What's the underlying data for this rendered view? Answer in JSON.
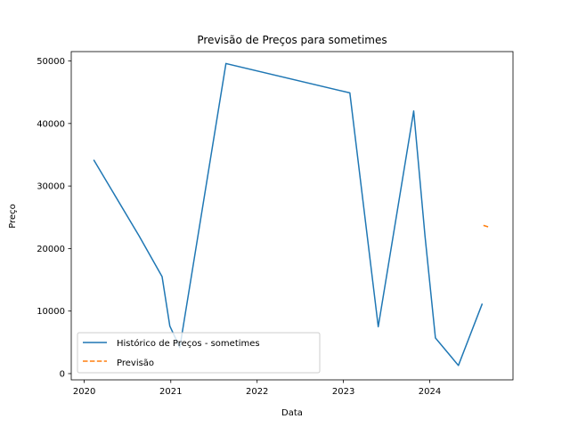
{
  "chart_data": {
    "type": "line",
    "title": "Previsão de Preços para sometimes",
    "xlabel": "Data",
    "ylabel": "Preço",
    "x_axis": {
      "kind": "date",
      "xlim": [
        "2019-11-07",
        "2024-12-18"
      ],
      "ticks": [
        {
          "value": "2020-01-01",
          "label": "2020"
        },
        {
          "value": "2021-01-01",
          "label": "2021"
        },
        {
          "value": "2022-01-01",
          "label": "2022"
        },
        {
          "value": "2023-01-01",
          "label": "2023"
        },
        {
          "value": "2024-01-01",
          "label": "2024"
        }
      ]
    },
    "y_axis": {
      "ylim": [
        -1000,
        51500
      ],
      "ticks": [
        0,
        10000,
        20000,
        30000,
        40000,
        50000
      ]
    },
    "grid": false,
    "legend_position": "lower left",
    "series": [
      {
        "name": "Histórico de Preços - sometimes",
        "color": "#1f77b4",
        "style": "solid",
        "points": [
          {
            "x": "2020-02-10",
            "y": 34200
          },
          {
            "x": "2020-08-20",
            "y": 22000
          },
          {
            "x": "2020-11-25",
            "y": 15500
          },
          {
            "x": "2020-12-28",
            "y": 7600
          },
          {
            "x": "2021-02-08",
            "y": 4200
          },
          {
            "x": "2021-08-22",
            "y": 49600
          },
          {
            "x": "2023-01-28",
            "y": 44900
          },
          {
            "x": "2023-05-28",
            "y": 7500
          },
          {
            "x": "2023-10-25",
            "y": 42000
          },
          {
            "x": "2023-12-12",
            "y": 22000
          },
          {
            "x": "2024-01-25",
            "y": 5700
          },
          {
            "x": "2024-05-01",
            "y": 1300
          },
          {
            "x": "2024-08-10",
            "y": 11200
          }
        ]
      },
      {
        "name": "Previsão",
        "color": "#ff7f0e",
        "style": "dashed",
        "points": [
          {
            "x": "2024-08-15",
            "y": 23700
          },
          {
            "x": "2024-09-10",
            "y": 23400
          }
        ]
      }
    ]
  }
}
